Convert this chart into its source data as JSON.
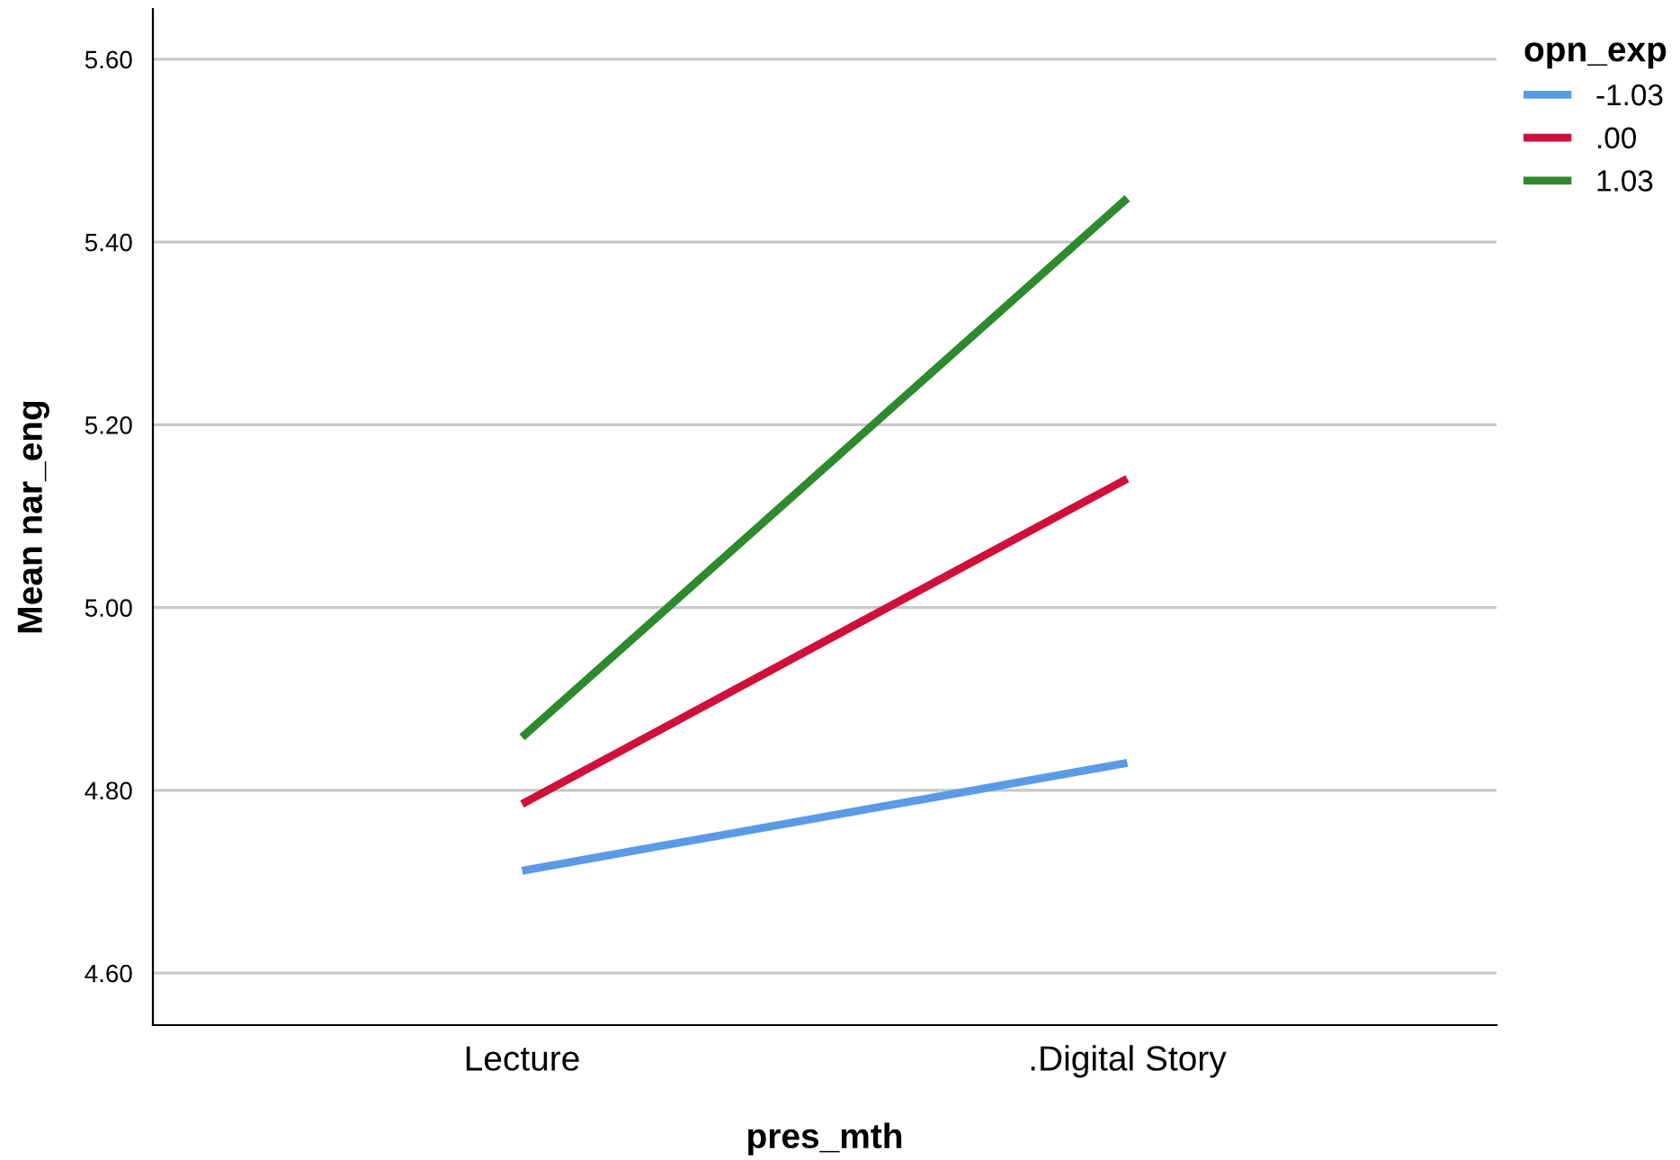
{
  "chart_data": {
    "type": "line",
    "xlabel": "pres_mth",
    "ylabel": "Mean nar_eng",
    "legend_title": "opn_exp",
    "categories": [
      "Lecture",
      ".Digital Story"
    ],
    "series": [
      {
        "name": "-1.03",
        "color": "#5b9be6",
        "values": [
          4.712,
          4.83
        ]
      },
      {
        "name": ".00",
        "color": "#d0103a",
        "values": [
          4.785,
          5.141
        ]
      },
      {
        "name": "1.03",
        "color": "#2e8a2e",
        "values": [
          4.858,
          5.448
        ]
      }
    ],
    "ylim": [
      4.543,
      5.655
    ],
    "yticks": [
      {
        "value": 4.6,
        "label": "4.60"
      },
      {
        "value": 4.8,
        "label": "4.80"
      },
      {
        "value": 5.0,
        "label": "5.00"
      },
      {
        "value": 5.2,
        "label": "5.20"
      },
      {
        "value": 5.4,
        "label": "5.40"
      },
      {
        "value": 5.6,
        "label": "5.60"
      }
    ],
    "grid": "y",
    "legend": "top right",
    "marker": "none",
    "line_style": "solid"
  }
}
